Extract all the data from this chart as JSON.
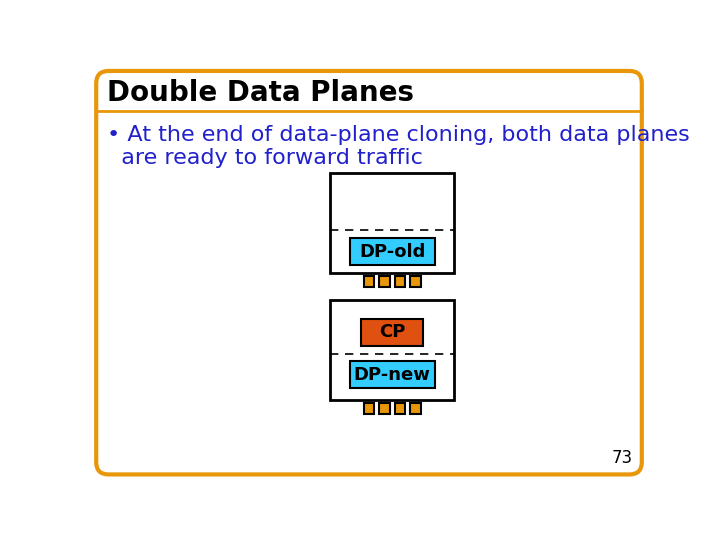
{
  "title": "Double Data Planes",
  "bullet_line1": "• At the end of data-plane cloning, both data planes",
  "bullet_line2": "  are ready to forward traffic",
  "page_num": "73",
  "outer_border_color": "#E8960A",
  "outer_bg": "#FFFFFF",
  "title_fontsize": 20,
  "bullet_fontsize": 16,
  "label_fontsize": 13,
  "cyan_color": "#33CCFF",
  "orange_color": "#E8960A",
  "cp_color": "#E05010",
  "black_color": "#000000",
  "blue_text": "#2020CC",
  "white_color": "#FFFFFF",
  "box_outline": "#000000",
  "dashed_color": "#000000"
}
